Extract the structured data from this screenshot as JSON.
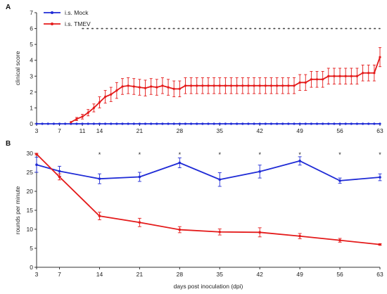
{
  "chart_data": [
    {
      "panel": "A",
      "type": "line",
      "ylabel": "clinical score",
      "xlabel": "",
      "ylim": [
        0,
        7
      ],
      "yticks": [
        0,
        1,
        2,
        3,
        4,
        5,
        6,
        7
      ],
      "xticks": [
        3,
        7,
        11,
        14,
        21,
        28,
        35,
        42,
        49,
        56,
        63
      ],
      "xlim": [
        3,
        63
      ],
      "reference_line": {
        "y": 6,
        "style": "dotted"
      },
      "legend": "top-left",
      "series": [
        {
          "name": "i.s. Mock",
          "color": "#1f2bd6",
          "x": [
            3,
            4,
            5,
            6,
            7,
            8,
            9,
            10,
            11,
            12,
            13,
            14,
            15,
            16,
            17,
            18,
            19,
            20,
            21,
            22,
            23,
            24,
            25,
            26,
            27,
            28,
            29,
            30,
            31,
            32,
            33,
            34,
            35,
            36,
            37,
            38,
            39,
            40,
            41,
            42,
            43,
            44,
            45,
            46,
            47,
            48,
            49,
            50,
            51,
            52,
            53,
            54,
            55,
            56,
            57,
            58,
            59,
            60,
            61,
            62,
            63
          ],
          "y": [
            0,
            0,
            0,
            0,
            0,
            0,
            0,
            0,
            0,
            0,
            0,
            0,
            0,
            0,
            0,
            0,
            0,
            0,
            0,
            0,
            0,
            0,
            0,
            0,
            0,
            0,
            0,
            0,
            0,
            0,
            0,
            0,
            0,
            0,
            0,
            0,
            0,
            0,
            0,
            0,
            0,
            0,
            0,
            0,
            0,
            0,
            0,
            0,
            0,
            0,
            0,
            0,
            0,
            0,
            0,
            0,
            0,
            0,
            0,
            0,
            0
          ]
        },
        {
          "name": "i.s. TMEV",
          "color": "#e41a1a",
          "x": [
            9,
            10,
            11,
            12,
            13,
            14,
            15,
            16,
            17,
            18,
            19,
            20,
            21,
            22,
            23,
            24,
            25,
            26,
            27,
            28,
            29,
            30,
            31,
            32,
            33,
            34,
            35,
            36,
            37,
            38,
            39,
            40,
            41,
            42,
            43,
            44,
            45,
            46,
            47,
            48,
            49,
            50,
            51,
            52,
            53,
            54,
            55,
            56,
            57,
            58,
            59,
            60,
            61,
            62,
            63
          ],
          "y": [
            0.1,
            0.3,
            0.45,
            0.7,
            1.0,
            1.35,
            1.7,
            1.85,
            2.1,
            2.35,
            2.4,
            2.35,
            2.3,
            2.25,
            2.35,
            2.3,
            2.4,
            2.3,
            2.2,
            2.2,
            2.4,
            2.4,
            2.4,
            2.4,
            2.4,
            2.4,
            2.4,
            2.4,
            2.4,
            2.4,
            2.4,
            2.4,
            2.4,
            2.4,
            2.4,
            2.4,
            2.4,
            2.4,
            2.4,
            2.4,
            2.6,
            2.6,
            2.8,
            2.8,
            2.8,
            3.0,
            3.0,
            3.0,
            3.0,
            3.0,
            3.0,
            3.2,
            3.2,
            3.2,
            4.2
          ],
          "err": [
            0,
            0.1,
            0.15,
            0.2,
            0.25,
            0.35,
            0.4,
            0.45,
            0.5,
            0.5,
            0.5,
            0.5,
            0.5,
            0.5,
            0.5,
            0.5,
            0.5,
            0.5,
            0.5,
            0.5,
            0.5,
            0.5,
            0.5,
            0.5,
            0.5,
            0.5,
            0.5,
            0.5,
            0.5,
            0.5,
            0.5,
            0.5,
            0.5,
            0.5,
            0.5,
            0.5,
            0.5,
            0.5,
            0.5,
            0.5,
            0.5,
            0.5,
            0.5,
            0.5,
            0.5,
            0.5,
            0.5,
            0.5,
            0.5,
            0.5,
            0.5,
            0.5,
            0.5,
            0.5,
            0.6
          ]
        }
      ]
    },
    {
      "panel": "B",
      "type": "line",
      "ylabel": "rounds per minute",
      "xlabel": "days post inoculation (dpi)",
      "ylim": [
        0,
        30
      ],
      "yticks": [
        0,
        5,
        10,
        15,
        20,
        25,
        30
      ],
      "xticks": [
        3,
        7,
        14,
        21,
        28,
        35,
        42,
        49,
        56,
        63
      ],
      "xlim": [
        3,
        63
      ],
      "significance_marks": {
        "symbol": "*",
        "x": [
          14,
          21,
          28,
          35,
          42,
          49,
          56,
          63
        ]
      },
      "series": [
        {
          "name": "i.s. Mock",
          "color": "#1f2bd6",
          "x": [
            3,
            7,
            14,
            21,
            28,
            35,
            42,
            49,
            56,
            63
          ],
          "y": [
            27,
            25.3,
            23.3,
            23.8,
            27.5,
            23.1,
            25.2,
            28.0,
            22.8,
            23.7
          ],
          "err": [
            2.0,
            1.3,
            1.3,
            1.2,
            1.3,
            1.8,
            1.7,
            1.1,
            0.7,
            0.9
          ]
        },
        {
          "name": "i.s. TMEV",
          "color": "#e41a1a",
          "x": [
            3,
            7,
            14,
            21,
            28,
            35,
            42,
            49,
            56,
            63
          ],
          "y": [
            29.8,
            23.8,
            13.5,
            11.8,
            9.9,
            9.3,
            9.2,
            8.2,
            7.1,
            6.0
          ],
          "err": [
            0.2,
            0.8,
            1.0,
            1.1,
            0.8,
            0.8,
            1.2,
            0.7,
            0.5,
            0.2
          ]
        }
      ]
    }
  ]
}
